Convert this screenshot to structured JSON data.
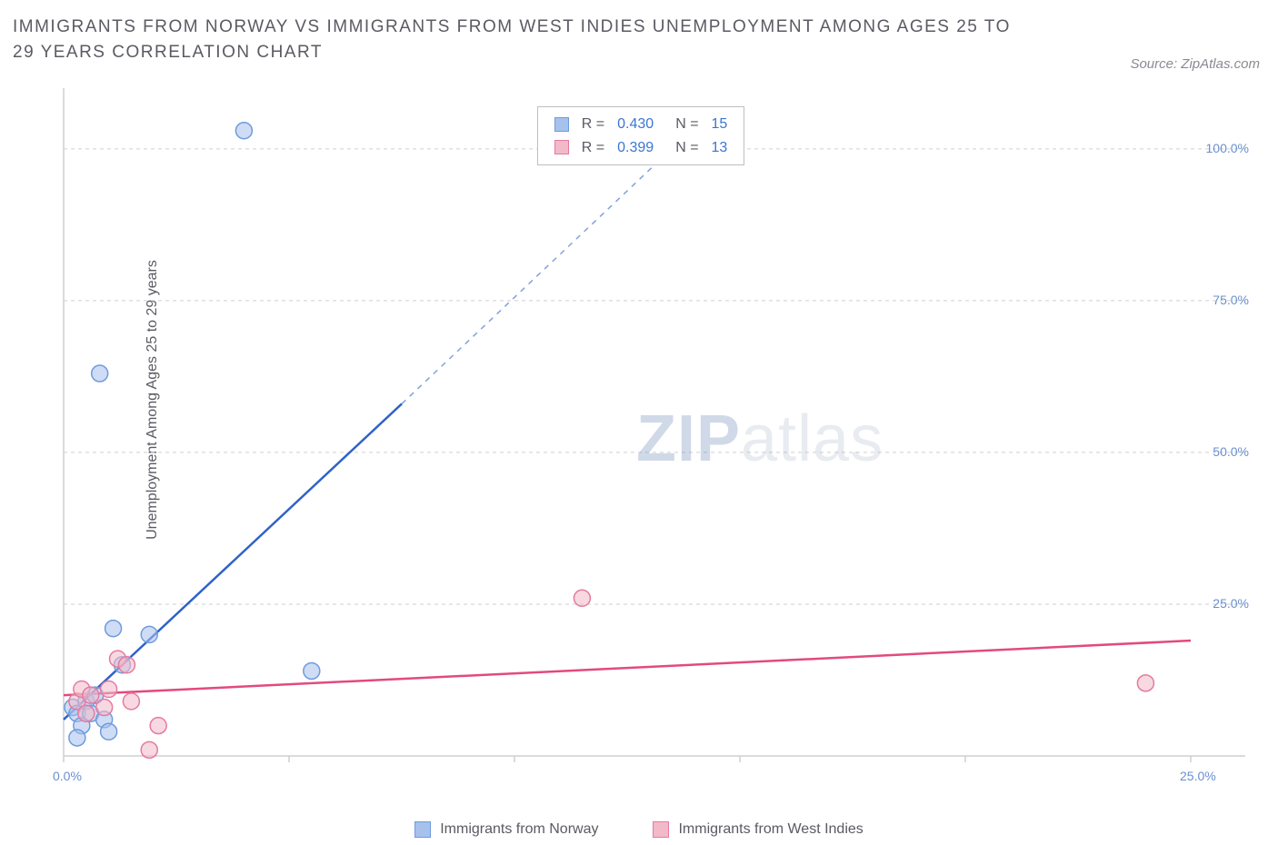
{
  "title": "IMMIGRANTS FROM NORWAY VS IMMIGRANTS FROM WEST INDIES UNEMPLOYMENT AMONG AGES 25 TO 29 YEARS CORRELATION CHART",
  "source": "Source: ZipAtlas.com",
  "ylabel": "Unemployment Among Ages 25 to 29 years",
  "watermark_zip": "ZIP",
  "watermark_atlas": "atlas",
  "chart": {
    "type": "scatter",
    "xlim": [
      0,
      25
    ],
    "ylim": [
      0,
      110
    ],
    "xtick_positions": [
      0,
      5,
      10,
      15,
      20,
      25
    ],
    "xtick_labels": [
      "0.0%",
      "",
      "",
      "",
      "",
      "25.0%"
    ],
    "ytick_positions": [
      25,
      50,
      75,
      100
    ],
    "ytick_labels": [
      "25.0%",
      "50.0%",
      "75.0%",
      "100.0%"
    ],
    "grid_color": "#cfcfcf",
    "background_color": "#ffffff",
    "axis_color": "#cfcfcf",
    "tick_label_color": "#6a8fd0",
    "tick_fontsize": 14,
    "series": [
      {
        "name": "Immigrants from Norway",
        "color_fill": "#a6c1ec",
        "color_stroke": "#6f9bdc",
        "marker_opacity": 0.55,
        "marker_radius": 9,
        "trend_color": "#2f62c9",
        "trend_width": 2.5,
        "trend_solid": {
          "x1": 0,
          "y1": 6,
          "x2": 7.5,
          "y2": 58
        },
        "trend_dashed": {
          "x1": 7.5,
          "y1": 58,
          "x2": 14.2,
          "y2": 105
        },
        "points": [
          {
            "x": 0.2,
            "y": 8
          },
          {
            "x": 0.3,
            "y": 7
          },
          {
            "x": 0.4,
            "y": 5
          },
          {
            "x": 0.3,
            "y": 3
          },
          {
            "x": 0.5,
            "y": 9
          },
          {
            "x": 0.7,
            "y": 10
          },
          {
            "x": 0.6,
            "y": 7
          },
          {
            "x": 0.9,
            "y": 6
          },
          {
            "x": 1.1,
            "y": 21
          },
          {
            "x": 1.3,
            "y": 15
          },
          {
            "x": 1.9,
            "y": 20
          },
          {
            "x": 1.0,
            "y": 4
          },
          {
            "x": 4.0,
            "y": 103
          },
          {
            "x": 0.8,
            "y": 63
          },
          {
            "x": 5.5,
            "y": 14
          }
        ],
        "R": "0.430",
        "N": "15"
      },
      {
        "name": "Immigrants from West Indies",
        "color_fill": "#f2b9c8",
        "color_stroke": "#e57aa0",
        "marker_opacity": 0.55,
        "marker_radius": 9,
        "trend_color": "#e24a7e",
        "trend_width": 2.5,
        "trend_solid": {
          "x1": 0,
          "y1": 10,
          "x2": 25,
          "y2": 19
        },
        "points": [
          {
            "x": 0.3,
            "y": 9
          },
          {
            "x": 0.4,
            "y": 11
          },
          {
            "x": 0.5,
            "y": 7
          },
          {
            "x": 0.6,
            "y": 10
          },
          {
            "x": 0.9,
            "y": 8
          },
          {
            "x": 1.0,
            "y": 11
          },
          {
            "x": 1.2,
            "y": 16
          },
          {
            "x": 1.5,
            "y": 9
          },
          {
            "x": 1.4,
            "y": 15
          },
          {
            "x": 1.9,
            "y": 1
          },
          {
            "x": 2.1,
            "y": 5
          },
          {
            "x": 11.5,
            "y": 26
          },
          {
            "x": 24.0,
            "y": 12
          }
        ],
        "R": "0.399",
        "N": "13"
      }
    ]
  },
  "stats_box": {
    "labels": {
      "R": "R =",
      "N": "N ="
    }
  },
  "bottom_legend": [
    {
      "label": "Immigrants from Norway",
      "fill": "#a6c1ec",
      "stroke": "#6f9bdc"
    },
    {
      "label": "Immigrants from West Indies",
      "fill": "#f2b9c8",
      "stroke": "#e57aa0"
    }
  ]
}
